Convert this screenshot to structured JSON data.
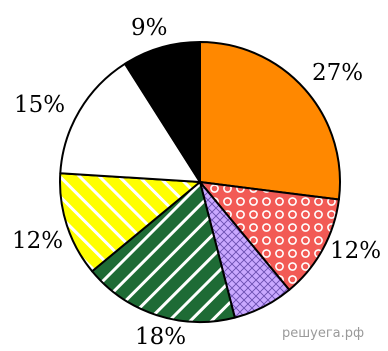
{
  "chart_data": {
    "type": "pie",
    "start_angle": "top",
    "direction": "clockwise",
    "slices": [
      {
        "label": "27%",
        "value": 27,
        "color": "#ff8800",
        "pattern": "solid"
      },
      {
        "label": "12%",
        "value": 12,
        "color": "#f25a55",
        "pattern": "circles"
      },
      {
        "label": "",
        "value": 7,
        "color": "#c9a8ff",
        "pattern": "crosshatch"
      },
      {
        "label": "18%",
        "value": 18,
        "color": "#1e6b35",
        "pattern": "diagonal-stripes"
      },
      {
        "label": "12%",
        "value": 12,
        "color": "#ffff00",
        "pattern": "diagonal-stripes"
      },
      {
        "label": "15%",
        "value": 15,
        "color": "#ffffff",
        "pattern": "solid"
      },
      {
        "label": "9%",
        "value": 9,
        "color": "#000000",
        "pattern": "solid"
      }
    ]
  },
  "watermark": "решуега.рф"
}
